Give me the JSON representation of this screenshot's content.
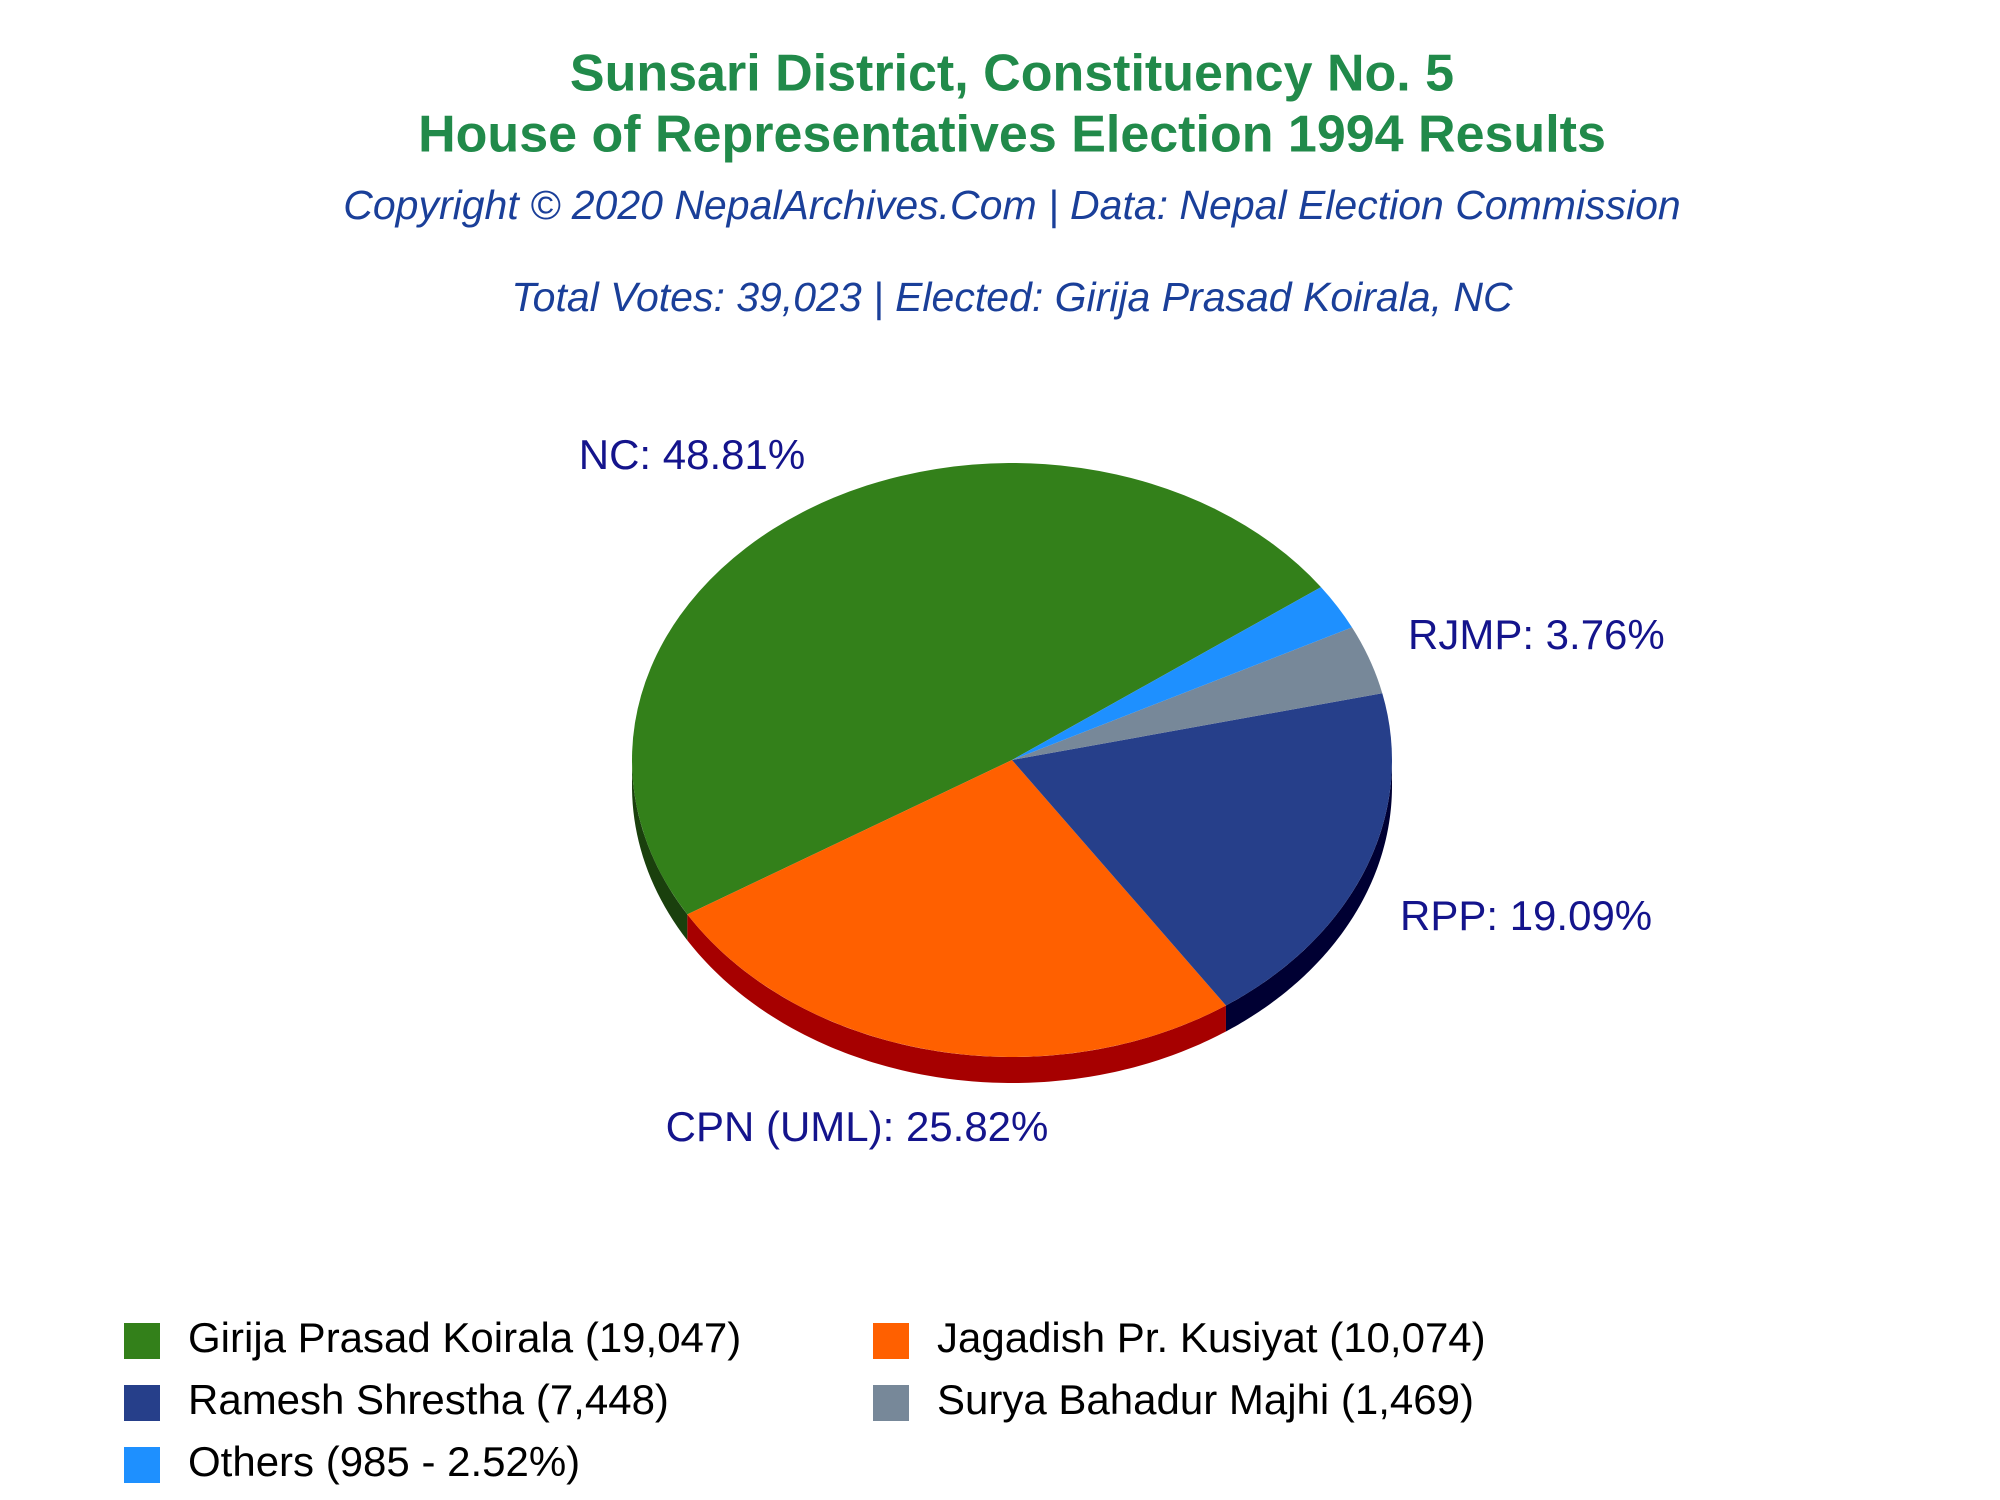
{
  "chart_data": {
    "type": "pie",
    "title": "Sunsari District, Constituency No. 5",
    "subtitle": "House of Representatives Election 1994 Results",
    "copyright": "Copyright © 2020 NepalArchives.Com | Data: Nepal Election Commission",
    "summary": "Total Votes: 39,023 | Elected: Girija Prasad Koirala, NC",
    "categories": [
      "Girija Prasad Koirala (19,047)",
      "Jagadish Pr. Kusiyat (10,074)",
      "Ramesh Shrestha (7,448)",
      "Surya Bahadur Majhi (1,469)",
      "Others (985 - 2.52%)"
    ],
    "values": [
      48.81,
      25.82,
      19.09,
      3.76,
      2.52
    ],
    "value_labels": [
      "NC: 48.81%",
      "CPN (UML): 25.82%",
      "RPP: 19.09%",
      "RJMP: 3.76%",
      null
    ],
    "colors": [
      "#33801a",
      "#ff6000",
      "#263f8a",
      "#778899",
      "#1e90ff"
    ],
    "side_colors": [
      "#1a400d",
      "#a60000",
      "#000033",
      "#4a5560",
      "#1060b0"
    ]
  }
}
